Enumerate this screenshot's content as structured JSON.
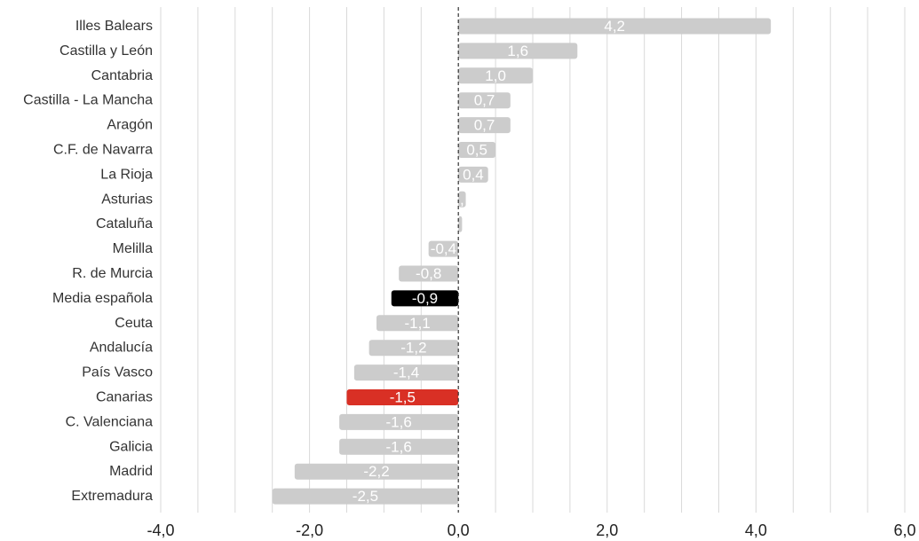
{
  "chart_data": {
    "type": "bar",
    "orientation": "horizontal",
    "categories": [
      "Illes Balears",
      "Castilla y León",
      "Cantabria",
      "Castilla - La Mancha",
      "Aragón",
      "C.F. de Navarra",
      "La Rioja",
      "Asturias",
      "Cataluña",
      "Melilla",
      "R. de Murcia",
      "Media española",
      "Ceuta",
      "Andalucía",
      "País Vasco",
      "Canarias",
      "C. Valenciana",
      "Galicia",
      "Madrid",
      "Extremadura"
    ],
    "values": [
      4.2,
      1.6,
      1.0,
      0.7,
      0.7,
      0.5,
      0.4,
      0.1,
      0.05,
      -0.4,
      -0.8,
      -0.9,
      -1.1,
      -1.2,
      -1.4,
      -1.5,
      -1.6,
      -1.6,
      -2.2,
      -2.5
    ],
    "value_labels": [
      "4,2",
      "1,6",
      "1,0",
      "0,7",
      "0,7",
      "0,5",
      "0,4",
      ",",
      "",
      "-0,4",
      "-0,8",
      "-0,9",
      "-1,1",
      "-1,2",
      "-1,4",
      "-1,5",
      "-1,6",
      "-1,6",
      "-2,2",
      "-2,5"
    ],
    "bar_colors": [
      "#cccccc",
      "#cccccc",
      "#cccccc",
      "#cccccc",
      "#cccccc",
      "#cccccc",
      "#cccccc",
      "#cccccc",
      "#cccccc",
      "#cccccc",
      "#cccccc",
      "#000000",
      "#cccccc",
      "#cccccc",
      "#cccccc",
      "#d93025",
      "#cccccc",
      "#cccccc",
      "#cccccc",
      "#cccccc"
    ],
    "xticks": [
      -4,
      -2,
      0,
      2,
      4,
      6
    ],
    "xtick_labels": [
      "-4,0",
      "-2,0",
      "0,0",
      "2,0",
      "4,0",
      "6,0"
    ],
    "xlim": [
      -4,
      6
    ],
    "grid": "vertical",
    "zero_line": "dashed",
    "title": "",
    "xlabel": "",
    "ylabel": ""
  },
  "colors": {
    "default_bar": "#cccccc",
    "highlight_average": "#000000",
    "highlight_canarias": "#d93025",
    "grid": "#d9d9d9",
    "zero_line": "#333333"
  }
}
